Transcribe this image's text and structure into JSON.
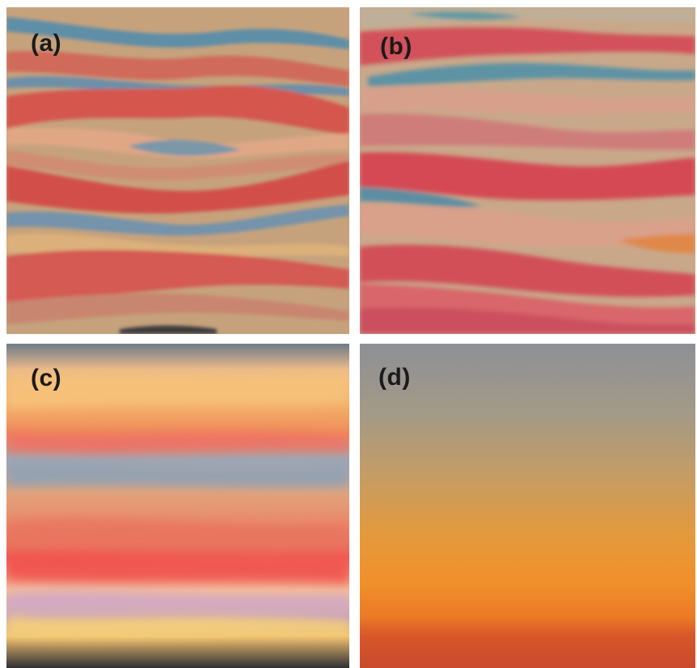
{
  "panels": [
    {
      "id": "a",
      "label": "(a)"
    },
    {
      "id": "b",
      "label": "(b)"
    },
    {
      "id": "c",
      "label": "(c)"
    },
    {
      "id": "d",
      "label": "(d)"
    }
  ],
  "colors": {
    "background": "#ffffff",
    "label": "#1a1a1a",
    "pastel_ground": "#c9a57e",
    "pastel_red": "#d55a52",
    "pastel_blue": "#6f94a6",
    "sky_top_grey": "#8d9096",
    "sky_orange": "#f0962d",
    "sky_deep_orange": "#d5572b"
  }
}
